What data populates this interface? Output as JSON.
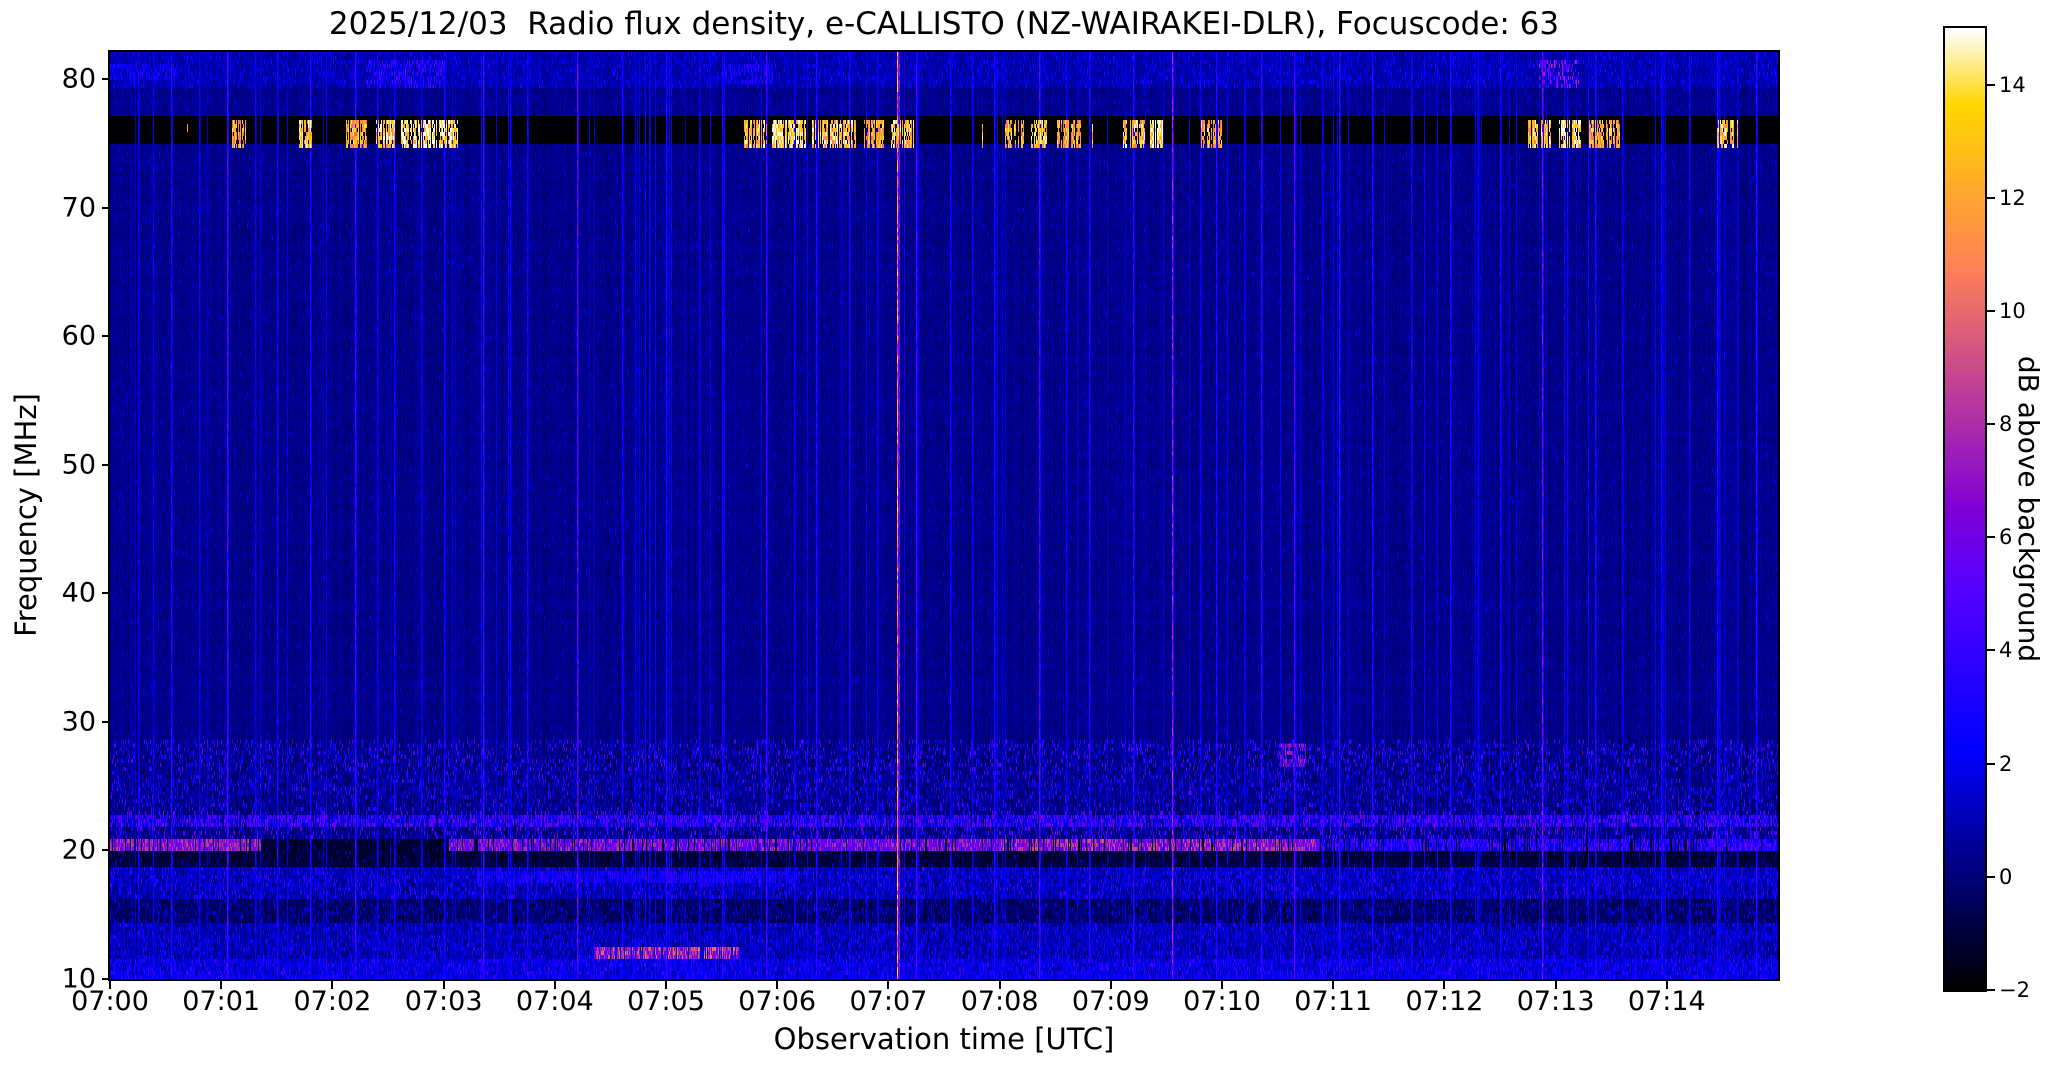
{
  "chart_data": {
    "type": "heatmap",
    "title": "2025/12/03  Radio flux density, e-CALLISTO (NZ-WAIRAKEI-DLR), Focuscode: 63",
    "xlabel": "Observation time [UTC]",
    "ylabel": "Frequency [MHz]",
    "colorbar_label": "dB above background",
    "colormap": "gnuplot2",
    "legend_position": "right-colorbar",
    "grid": false,
    "x_ticks": [
      "07:00",
      "07:01",
      "07:02",
      "07:03",
      "07:04",
      "07:05",
      "07:06",
      "07:07",
      "07:08",
      "07:09",
      "07:10",
      "07:11",
      "07:12",
      "07:13",
      "07:14"
    ],
    "x_span_minutes": 15,
    "y_ticks": [
      10,
      20,
      30,
      40,
      50,
      60,
      70,
      80
    ],
    "ylim": [
      10,
      82.14
    ],
    "clim": [
      -2,
      15
    ],
    "colorbar_ticks": [
      -2,
      0,
      2,
      4,
      6,
      8,
      10,
      12,
      14
    ],
    "colorbar_tick_labels": [
      "−2",
      "0",
      "2",
      "4",
      "6",
      "8",
      "10",
      "12",
      "14"
    ],
    "features": {
      "frequency_profile": [
        {
          "f": [
            10,
            11.6
          ],
          "base": 1.6,
          "noise": 1.2,
          "speckle": [
            0.25,
            2,
            4.5
          ]
        },
        {
          "f": [
            11.6,
            14.2
          ],
          "base": 0.8,
          "noise": 1.0,
          "speckle": [
            0.2,
            1.5,
            4
          ]
        },
        {
          "f": [
            14.2,
            16.3
          ],
          "base": -0.3,
          "noise": 0.8,
          "speckle": [
            0.12,
            0.5,
            3
          ]
        },
        {
          "f": [
            16.3,
            18.8
          ],
          "base": 0.9,
          "noise": 1.1,
          "speckle": [
            0.22,
            1.5,
            4.5
          ]
        },
        {
          "f": [
            18.8,
            21.0
          ],
          "base": -1.1,
          "noise": 0.5,
          "speckle": [
            0.05,
            0,
            2
          ]
        },
        {
          "f": [
            21.0,
            23.2
          ],
          "base": 0.2,
          "noise": 1.0,
          "speckle": [
            0.18,
            2,
            6.5
          ]
        },
        {
          "f": [
            23.2,
            26.2
          ],
          "base": 0.3,
          "noise": 0.9,
          "speckle": [
            0.15,
            1.5,
            5
          ]
        },
        {
          "f": [
            26.2,
            28.8
          ],
          "base": 0.2,
          "noise": 0.9,
          "speckle": [
            0.18,
            1.5,
            5.5
          ]
        },
        {
          "f": [
            28.8,
            75.0
          ],
          "base": 0.3,
          "noise": 0.35,
          "speckle": [
            0.02,
            1,
            2.2
          ]
        },
        {
          "f": [
            75.0,
            77.2
          ],
          "base": -2,
          "noise": 0.1,
          "speckle": [
            0,
            0,
            0
          ]
        },
        {
          "f": [
            77.2,
            79.3
          ],
          "base": 0.4,
          "noise": 0.4,
          "speckle": [
            0.02,
            1,
            2
          ]
        },
        {
          "f": [
            79.3,
            82.2
          ],
          "base": 0.9,
          "noise": 0.7,
          "speckle": [
            0.1,
            1.5,
            3.5
          ]
        }
      ],
      "spectral_lines": [
        {
          "f": 20.45,
          "half_width": 0.3,
          "segments": [
            {
              "t": [
                0,
                1.35
              ],
              "db": 7,
              "var": 2
            },
            {
              "t": [
                3.05,
                8.0
              ],
              "db": 6,
              "var": 2.5
            },
            {
              "t": [
                8.0,
                10.85
              ],
              "db": 7,
              "var": 2.5
            },
            {
              "t": [
                10.85,
                15
              ],
              "db": 3.5,
              "var": 2.5
            }
          ]
        },
        {
          "f": 22.45,
          "half_width": 0.25,
          "segments": [
            {
              "t": [
                0,
                15
              ],
              "db": 3,
              "var": 3
            }
          ]
        },
        {
          "f": 12.05,
          "half_width": 0.3,
          "segments": [
            {
              "t": [
                4.35,
                5.65
              ],
              "db": 7.5,
              "var": 3
            }
          ]
        },
        {
          "f": 18.05,
          "half_width": 0.25,
          "segments": [
            {
              "t": [
                3.3,
                6.2
              ],
              "db": 2.5,
              "var": 1.5
            }
          ]
        }
      ],
      "band_bursts": {
        "f": [
          75.1,
          77.0
        ],
        "stray_rate": 0.004,
        "intervals": [
          {
            "t": [
              1.1,
              1.22
            ],
            "db": 12
          },
          {
            "t": [
              1.7,
              1.82
            ],
            "db": 13
          },
          {
            "t": [
              2.12,
              2.3
            ],
            "db": 12
          },
          {
            "t": [
              2.38,
              2.55
            ],
            "db": 13
          },
          {
            "t": [
              2.62,
              3.12
            ],
            "db": 14
          },
          {
            "t": [
              5.7,
              5.9
            ],
            "db": 13
          },
          {
            "t": [
              5.95,
              6.25
            ],
            "db": 14
          },
          {
            "t": [
              6.3,
              6.7
            ],
            "db": 13
          },
          {
            "t": [
              6.78,
              6.95
            ],
            "db": 12
          },
          {
            "t": [
              7.02,
              7.22
            ],
            "db": 13
          },
          {
            "t": [
              8.05,
              8.22
            ],
            "db": 12
          },
          {
            "t": [
              8.28,
              8.42
            ],
            "db": 13
          },
          {
            "t": [
              8.52,
              8.75
            ],
            "db": 12
          },
          {
            "t": [
              9.11,
              9.3
            ],
            "db": 13
          },
          {
            "t": [
              9.35,
              9.46
            ],
            "db": 14
          },
          {
            "t": [
              9.81,
              9.99
            ],
            "db": 12
          },
          {
            "t": [
              12.74,
              12.95
            ],
            "db": 13
          },
          {
            "t": [
              13.02,
              13.22
            ],
            "db": 14
          },
          {
            "t": [
              13.3,
              13.57
            ],
            "db": 12
          },
          {
            "t": [
              14.45,
              14.62
            ],
            "db": 13
          }
        ]
      },
      "patches": [
        {
          "t": [
            2.3,
            3.0
          ],
          "f": [
            79.8,
            81.4
          ],
          "db": 3.5,
          "var": 1.5
        },
        {
          "t": [
            5.5,
            5.95
          ],
          "f": [
            80.0,
            81.2
          ],
          "db": 3,
          "var": 1
        },
        {
          "t": [
            12.85,
            13.2
          ],
          "f": [
            79.6,
            81.4
          ],
          "db": 5,
          "var": 3
        },
        {
          "t": [
            0.0,
            0.6
          ],
          "f": [
            80.2,
            81.2
          ],
          "db": 2.5,
          "var": 1
        },
        {
          "t": [
            10.5,
            10.75
          ],
          "f": [
            26.8,
            28.2
          ],
          "db": 6,
          "var": 2
        }
      ],
      "vertical_streaks": [
        {
          "t": 0.25,
          "db": 2.5
        },
        {
          "t": 0.55,
          "db": 3.5
        },
        {
          "t": 0.8,
          "db": 2.5
        },
        {
          "t": 1.05,
          "db": 5
        },
        {
          "t": 1.3,
          "db": 2.5
        },
        {
          "t": 1.5,
          "db": 3
        },
        {
          "t": 1.8,
          "db": 3.5
        },
        {
          "t": 2.2,
          "db": 4.5
        },
        {
          "t": 2.4,
          "db": 2.5
        },
        {
          "t": 2.55,
          "db": 3
        },
        {
          "t": 2.8,
          "db": 2.5
        },
        {
          "t": 3.0,
          "db": 3
        },
        {
          "t": 3.35,
          "db": 4.5
        },
        {
          "t": 3.6,
          "db": 2.5
        },
        {
          "t": 3.75,
          "db": 3
        },
        {
          "t": 4.2,
          "db": 5.5
        },
        {
          "t": 4.6,
          "db": 3
        },
        {
          "t": 4.85,
          "db": 2.5
        },
        {
          "t": 5.0,
          "db": 3.5
        },
        {
          "t": 5.3,
          "db": 2.5
        },
        {
          "t": 5.5,
          "db": 3
        },
        {
          "t": 5.9,
          "db": 4.5
        },
        {
          "t": 6.15,
          "db": 2.5
        },
        {
          "t": 6.35,
          "db": 3.5
        },
        {
          "t": 6.65,
          "db": 3
        },
        {
          "t": 6.9,
          "db": 2.5
        },
        {
          "t": 7.08,
          "db": 11
        },
        {
          "t": 7.25,
          "db": 5
        },
        {
          "t": 7.55,
          "db": 3
        },
        {
          "t": 7.75,
          "db": 2.5
        },
        {
          "t": 7.95,
          "db": 3.5
        },
        {
          "t": 8.35,
          "db": 5
        },
        {
          "t": 8.6,
          "db": 2.5
        },
        {
          "t": 8.8,
          "db": 3.5
        },
        {
          "t": 9.2,
          "db": 4
        },
        {
          "t": 9.55,
          "db": 7
        },
        {
          "t": 9.8,
          "db": 2.5
        },
        {
          "t": 9.95,
          "db": 3.5
        },
        {
          "t": 10.2,
          "db": 2.5
        },
        {
          "t": 10.35,
          "db": 4
        },
        {
          "t": 10.65,
          "db": 5
        },
        {
          "t": 10.9,
          "db": 2.5
        },
        {
          "t": 11.05,
          "db": 4
        },
        {
          "t": 11.35,
          "db": 3.5
        },
        {
          "t": 11.7,
          "db": 3
        },
        {
          "t": 12.05,
          "db": 3.5
        },
        {
          "t": 12.3,
          "db": 2.5
        },
        {
          "t": 12.5,
          "db": 3
        },
        {
          "t": 12.88,
          "db": 6
        },
        {
          "t": 13.1,
          "db": 2.5
        },
        {
          "t": 13.35,
          "db": 3.5
        },
        {
          "t": 13.6,
          "db": 2.5
        },
        {
          "t": 13.95,
          "db": 3
        },
        {
          "t": 14.2,
          "db": 2.5
        },
        {
          "t": 14.45,
          "db": 3.5
        },
        {
          "t": 14.8,
          "db": 4
        }
      ],
      "minor_streaks": {
        "count": 70,
        "db": [
          1.2,
          2.8
        ]
      }
    }
  }
}
